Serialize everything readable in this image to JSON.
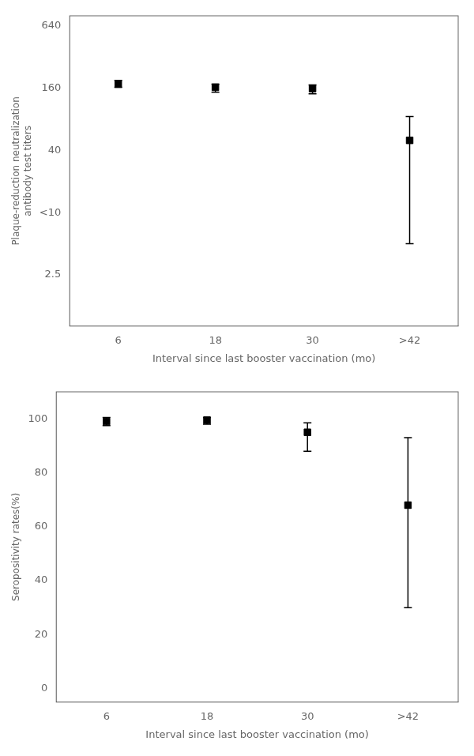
{
  "chart_data": [
    {
      "type": "scatter",
      "categories": [
        "6",
        "18",
        "30",
        ">42"
      ],
      "values": [
        175,
        163,
        158,
        50
      ],
      "error_lower": [
        12,
        17,
        17,
        45
      ],
      "error_upper": [
        15,
        12,
        14,
        35
      ],
      "color": "#000000",
      "marker": "square",
      "x_label": "Interval since last booster vaccination (mo)",
      "y_label": "Plaque-reduction neutralization\nantibody test titers",
      "log": "y",
      "ylim": [
        0.8,
        800
      ],
      "yticks": [
        2.5,
        {
          "value": 10,
          "label": "<10"
        },
        40,
        160,
        640
      ],
      "grid": false
    },
    {
      "type": "scatter",
      "categories": [
        "6",
        "18",
        "30",
        ">42"
      ],
      "values": [
        99,
        99.5,
        95,
        68
      ],
      "error_lower": [
        1.5,
        1.5,
        7,
        38
      ],
      "error_upper": [
        1.5,
        1.0,
        3.5,
        25
      ],
      "color": "#000000",
      "marker": "square",
      "x_label": "Interval since last booster vaccination (mo)",
      "y_label": "Seropositivity rates(%)",
      "ylim": [
        -5,
        110
      ],
      "yticks": [
        0,
        20,
        40,
        60,
        80,
        100
      ],
      "grid": false
    }
  ]
}
